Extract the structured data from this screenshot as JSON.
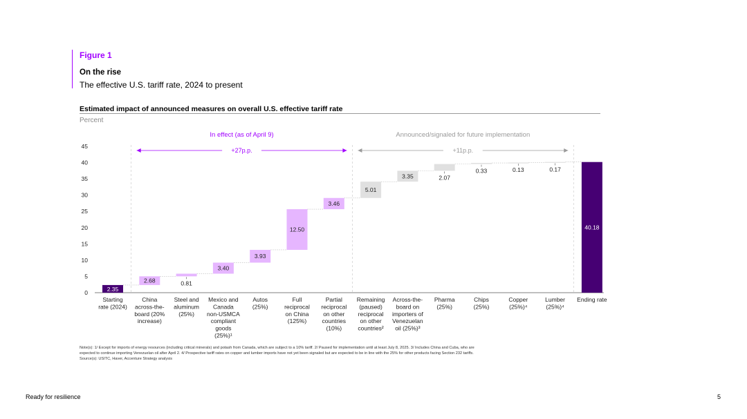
{
  "figure": {
    "label": "Figure 1",
    "title": "On the rise",
    "subtitle": "The effective U.S. tariff rate, 2024 to present"
  },
  "chart_data": {
    "type": "bar",
    "subtype": "waterfall",
    "title": "Estimated impact of announced measures on overall U.S. effective tariff rate",
    "ylabel": "Percent",
    "xlabel": "",
    "ylim": [
      0,
      45
    ],
    "yticks": [
      0,
      5,
      10,
      15,
      20,
      25,
      30,
      35,
      40,
      45
    ],
    "grid": false,
    "categories": [
      [
        "Starting",
        "rate (2024)"
      ],
      [
        "China",
        "across-the-",
        "board (20%",
        "increase)"
      ],
      [
        "Steel and",
        "aluminum",
        "(25%)"
      ],
      [
        "Mexico and",
        "Canada",
        "non-USMCA",
        "compliant",
        "goods",
        "(25%)¹"
      ],
      [
        "Autos",
        "(25%)"
      ],
      [
        "Full",
        "reciprocal",
        "on China",
        "(125%)"
      ],
      [
        "Partial",
        "reciprocal",
        "on other",
        "countries",
        "(10%)"
      ],
      [
        "Remaining",
        "(paused)",
        "reciprocal",
        "on other",
        "countries²"
      ],
      [
        "Across-the-",
        "board on",
        "importers of",
        "Venezuelan",
        "oil (25%)³"
      ],
      [
        "Pharma",
        "(25%)"
      ],
      [
        "Chips",
        "(25%)"
      ],
      [
        "Copper",
        "(25%)⁴"
      ],
      [
        "Lumber",
        "(25%)⁴"
      ],
      [
        "Ending rate"
      ]
    ],
    "values": [
      2.35,
      2.68,
      0.81,
      3.4,
      3.93,
      12.5,
      3.46,
      5.01,
      3.35,
      2.07,
      0.33,
      0.13,
      0.17,
      40.18
    ],
    "data_labels": [
      "2.35",
      "2.68",
      "0.81",
      "3.40",
      "3.93",
      "12.50",
      "3.46",
      "5.01",
      "3.35",
      "2.07",
      "0.33",
      "0.13",
      "0.17",
      "40.18"
    ],
    "kinds": [
      "total",
      "effect",
      "effect",
      "effect",
      "effect",
      "effect",
      "effect",
      "future",
      "future",
      "future",
      "future",
      "future",
      "future",
      "total"
    ],
    "groups": [
      {
        "label": "In effect (as of April 9)",
        "span_label": "+27p.p.",
        "from_index": 1,
        "to_index": 6
      },
      {
        "label": "Announced/signaled for future implementation",
        "span_label": "+11p.p.",
        "from_index": 7,
        "to_index": 12
      }
    ],
    "colors": {
      "total": "#460073",
      "effect": "#e6b6ff",
      "future": "#e0e0e0",
      "group_effect": "#a100ff",
      "group_future": "#9a9a9a",
      "axis": "#555555"
    }
  },
  "notes": {
    "line1": "Note(s): 1/ Except for imports of energy resources (including critical minerals) and potash from Canada, which are subject to a 10% tariff. 2/ Paused for implementation until at least July 8, 2025. 3/ Includes China and Cuba, who are",
    "line2": "expected to continue importing Venezuelan oil after April 2. 4/ Prospective tariff rates on copper and lumber imports have not yet been signaled but are expected to be in line with the 25% for other products facing Section 232 tariffs.",
    "line3": "Source(s): USITC, Haver, Accenture Strategy analysis"
  },
  "footer": {
    "left": "Ready for resilience",
    "page_number": "5"
  }
}
